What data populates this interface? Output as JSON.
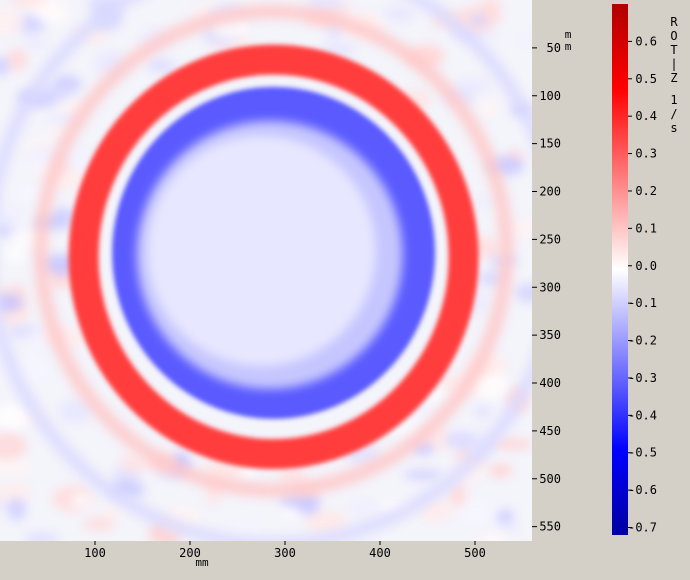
{
  "chart_data": {
    "type": "heatmap",
    "quantity": "ROT-Z",
    "unit": "1/s",
    "x_axis": {
      "unit": "mm",
      "ticks": [
        100,
        200,
        300,
        400,
        500
      ],
      "range": [
        0,
        560
      ]
    },
    "y_axis": {
      "unit": "mm",
      "ticks": [
        50,
        100,
        150,
        200,
        250,
        300,
        350,
        400,
        450,
        500,
        550
      ],
      "range": [
        0,
        565
      ]
    },
    "colorbar": {
      "range": [
        -0.72,
        0.7
      ],
      "ticks": [
        "0.6",
        "0.5",
        "0.4",
        "0.3",
        "0.2",
        "0.1",
        "0.0",
        "-0.1",
        "-0.2",
        "-0.3",
        "-0.4",
        "-0.5",
        "-0.6",
        "-0.7"
      ],
      "colors": {
        "negative": "#0000b0",
        "neutral": "#ffffff",
        "positive": "#b00000"
      }
    },
    "features": {
      "vortex_center_mm": [
        288,
        262
      ],
      "inner_core_radius_mm": 120,
      "core_value_range": [
        -0.05,
        0.0
      ],
      "negative_ring": {
        "radius_mm": 170,
        "value": -0.35
      },
      "positive_ring": {
        "radius_mm": 200,
        "value": 0.4
      },
      "outer_ripple_radii_mm": [
        245,
        300
      ]
    },
    "grid": false,
    "legend": "right"
  }
}
